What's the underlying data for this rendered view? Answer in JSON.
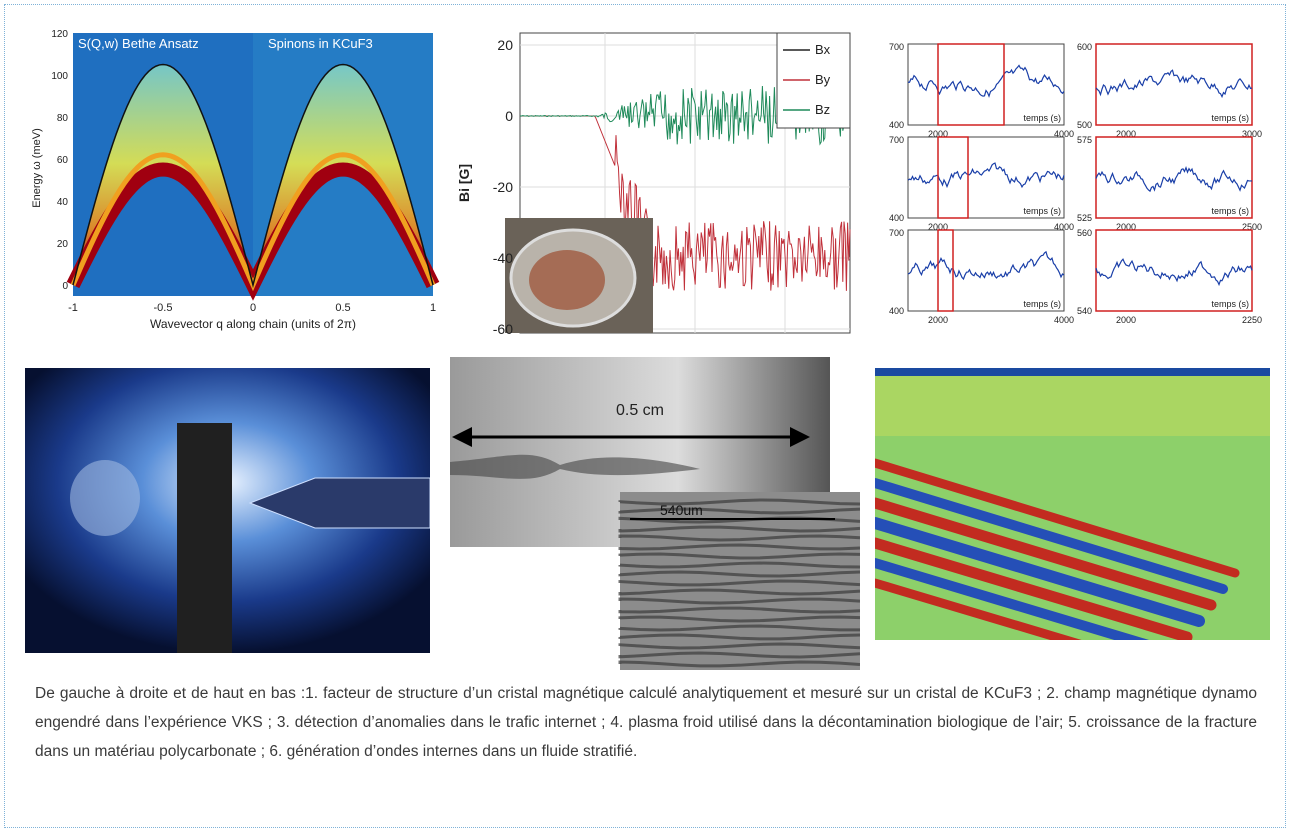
{
  "panels": [
    {
      "title_left": "S(Q,w) Bethe Ansatz",
      "title_right": "Spinons in KCuF3",
      "y_label": "Energy ω (meV)",
      "x_label": "Wavevector q along chain (units of 2π)",
      "y_ticks": [
        "120",
        "100",
        "80",
        "60",
        "40",
        "20",
        "0"
      ],
      "x_ticks": [
        "-1",
        "-0.5",
        "0",
        "0.5",
        "1"
      ]
    },
    {
      "y_label": "Bi [G]",
      "y_ticks": [
        "20",
        "0",
        "-20",
        "-40",
        "-60"
      ],
      "legend": [
        "Bx",
        "By",
        "Bz"
      ]
    },
    {
      "subplots": [
        {
          "y_ticks": [
            "700",
            "400"
          ],
          "x_ticks": [
            "2000",
            "4000"
          ],
          "x_label": "temps (s)"
        },
        {
          "y_ticks": [
            "600",
            "500"
          ],
          "x_ticks": [
            "2000",
            "3000"
          ],
          "x_label": "temps (s)"
        },
        {
          "y_ticks": [
            "700",
            "400"
          ],
          "x_ticks": [
            "2000",
            "4000"
          ],
          "x_label": "temps (s)"
        },
        {
          "y_ticks": [
            "575",
            "525"
          ],
          "x_ticks": [
            "2000",
            "2500"
          ],
          "x_label": "temps (s)"
        },
        {
          "y_ticks": [
            "700",
            "400"
          ],
          "x_ticks": [
            "2000",
            "4000"
          ],
          "x_label": "temps (s)"
        },
        {
          "y_ticks": [
            "560",
            "540"
          ],
          "x_ticks": [
            "2000",
            "2250"
          ],
          "x_label": "temps (s)"
        }
      ]
    },
    {},
    {
      "label": "0.5 cm",
      "inset_label": "540um"
    },
    {}
  ],
  "caption": "De gauche à droite et de haut en bas :1. facteur de structure d’un cristal magnétique calculé analytiquement et mesuré sur un cristal de KCuF3 ; 2. champ magnétique dynamo engendré dans l’expérience VKS ; 3. détection d’anomalies dans le trafic internet ; 4. plasma froid utilisé dans la décontamination biologique de l’air; 5. croissance de la fracture dans un matériau polycarbonate ; 6. génération d’ondes internes dans un fluide stratifié."
}
